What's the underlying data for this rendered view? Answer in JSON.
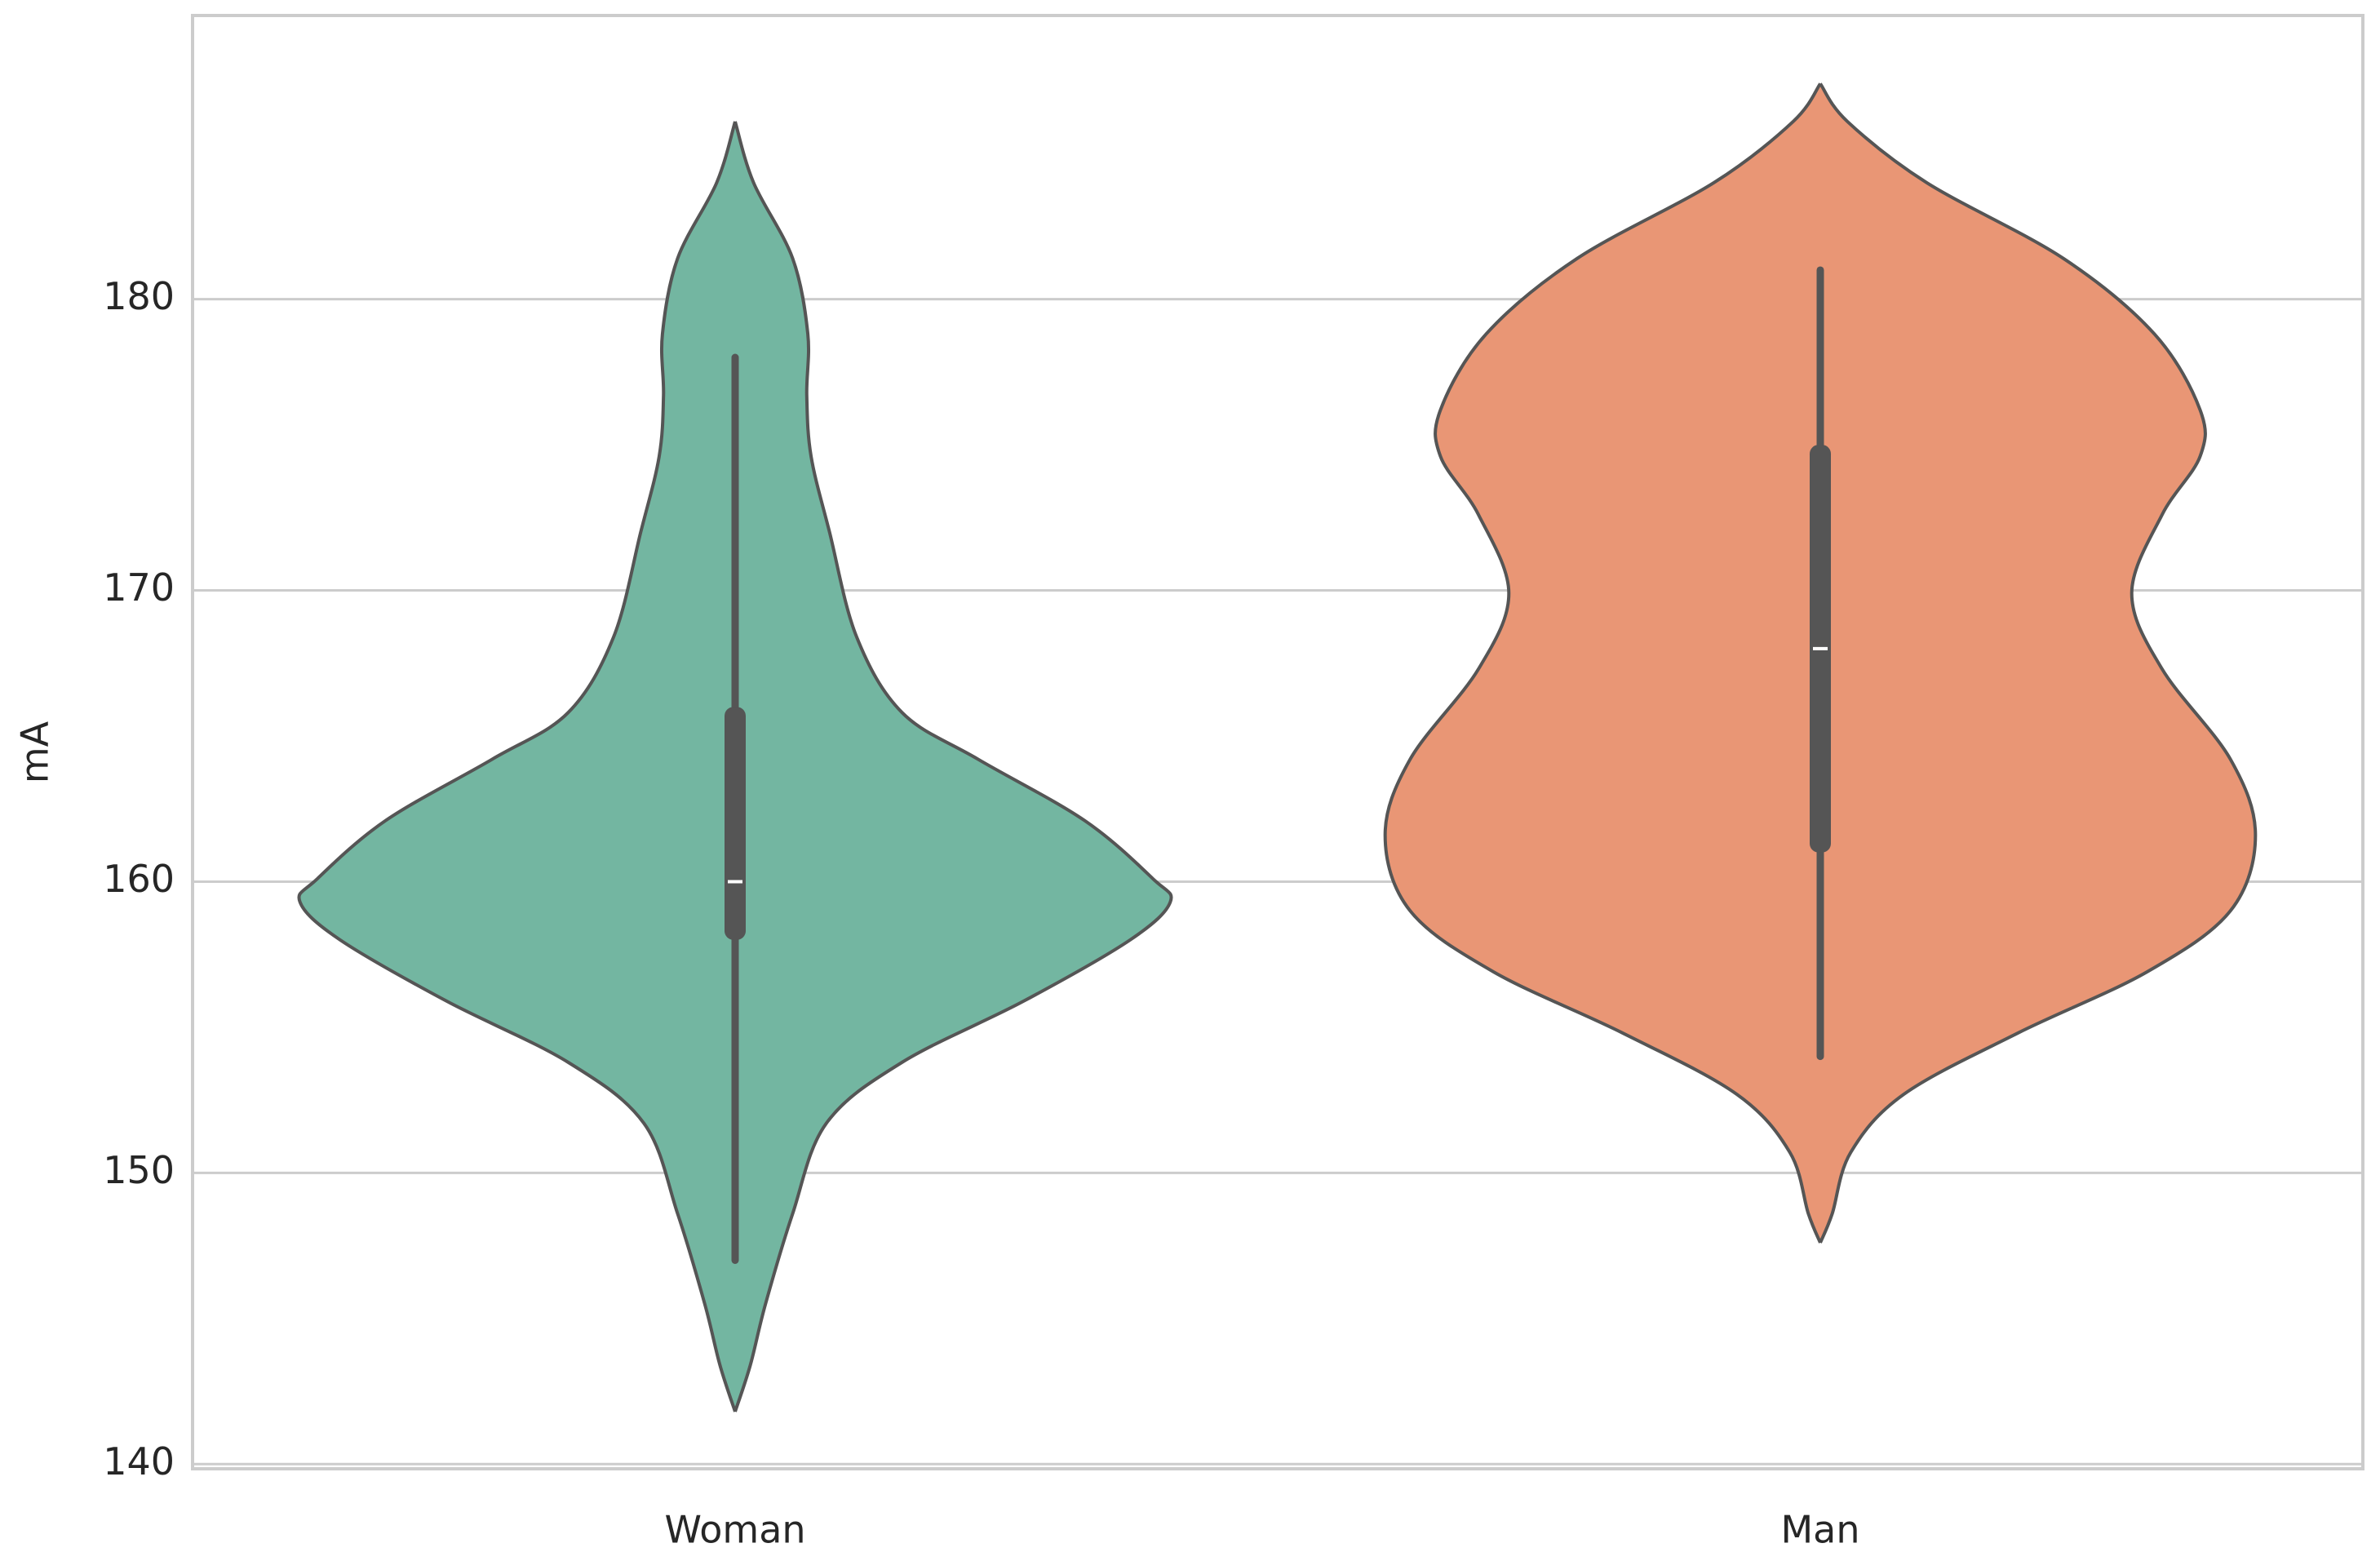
{
  "chart_data": {
    "type": "violin",
    "ylabel": "mA",
    "categories": [
      "Woman",
      "Man"
    ],
    "ylim": [
      139.84,
      189.74
    ],
    "yticks": [
      140,
      150,
      160,
      170,
      180
    ],
    "grid": true,
    "series": [
      {
        "name": "Woman",
        "color": "#73b6a1",
        "density": {
          "y": [
            186.1,
            184.0,
            181.4,
            178.8,
            176.7,
            174.6,
            172.0,
            168.4,
            165.8,
            164.2,
            162.1,
            160.1,
            159.3,
            158.0,
            155.9,
            153.8,
            151.7,
            148.6,
            145.5,
            143.4,
            141.8
          ],
          "width": [
            0,
            0.017,
            0.053,
            0.067,
            0.066,
            0.07,
            0.087,
            0.112,
            0.154,
            0.224,
            0.322,
            0.385,
            0.401,
            0.364,
            0.266,
            0.154,
            0.084,
            0.053,
            0.028,
            0.014,
            0
          ]
        },
        "whiskers": [
          147,
          178
        ],
        "quartiles": [
          158,
          166
        ],
        "median": 160
      },
      {
        "name": "Man",
        "color": "#e99675",
        "density": {
          "y": [
            187.4,
            186.1,
            184.0,
            181.4,
            178.8,
            176.2,
            174.6,
            172.6,
            169.9,
            167.3,
            164.2,
            161.6,
            159.0,
            156.9,
            154.8,
            152.7,
            150.7,
            148.6,
            147.6
          ],
          "width": [
            0,
            0.025,
            0.098,
            0.224,
            0.308,
            0.35,
            0.35,
            0.315,
            0.287,
            0.315,
            0.378,
            0.401,
            0.378,
            0.301,
            0.182,
            0.077,
            0.028,
            0.011,
            0
          ]
        },
        "whiskers": [
          154,
          181
        ],
        "quartiles": [
          161,
          175
        ],
        "median": 168
      }
    ]
  }
}
